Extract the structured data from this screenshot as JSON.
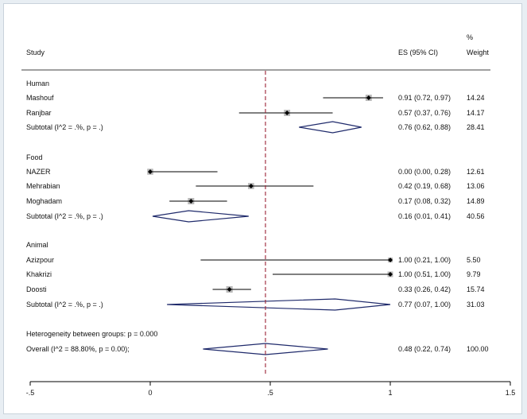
{
  "chart_data": {
    "type": "forest",
    "xlim": [
      -0.5,
      1.5
    ],
    "xticks": [
      "-.5",
      "0",
      ".5",
      "1",
      "1.5"
    ],
    "xtick_values": [
      -0.5,
      0,
      0.5,
      1,
      1.5
    ],
    "overall_line": 0.48,
    "columns": {
      "study": "Study",
      "es": "ES (95% CI)",
      "weight_pct": "%",
      "weight": "Weight"
    },
    "groups": [
      {
        "name": "Human",
        "studies": [
          {
            "name": "Mashouf",
            "es": 0.91,
            "lo": 0.72,
            "hi": 0.97,
            "es_text": "0.91 (0.72, 0.97)",
            "weight": "14.24"
          },
          {
            "name": "Ranjbar",
            "es": 0.57,
            "lo": 0.37,
            "hi": 0.76,
            "es_text": "0.57 (0.37, 0.76)",
            "weight": "14.17"
          }
        ],
        "subtotal": {
          "label": "Subtotal  (I^2 = .%, p = .)",
          "es": 0.76,
          "lo": 0.62,
          "hi": 0.88,
          "es_text": "0.76 (0.62, 0.88)",
          "weight": "28.41"
        }
      },
      {
        "name": "Food",
        "studies": [
          {
            "name": "NAZER",
            "es": 0.0,
            "lo": 0.0,
            "hi": 0.28,
            "es_text": "0.00 (0.00, 0.28)",
            "weight": "12.61"
          },
          {
            "name": "Mehrabian",
            "es": 0.42,
            "lo": 0.19,
            "hi": 0.68,
            "es_text": "0.42 (0.19, 0.68)",
            "weight": "13.06"
          },
          {
            "name": "Moghadam",
            "es": 0.17,
            "lo": 0.08,
            "hi": 0.32,
            "es_text": "0.17 (0.08, 0.32)",
            "weight": "14.89"
          }
        ],
        "subtotal": {
          "label": "Subtotal  (I^2 = .%, p = .)",
          "es": 0.16,
          "lo": 0.01,
          "hi": 0.41,
          "es_text": "0.16 (0.01, 0.41)",
          "weight": "40.56"
        }
      },
      {
        "name": "Animal",
        "studies": [
          {
            "name": "Azizpour",
            "es": 1.0,
            "lo": 0.21,
            "hi": 1.0,
            "es_text": "1.00 (0.21, 1.00)",
            "weight": "5.50"
          },
          {
            "name": "Khakrizi",
            "es": 1.0,
            "lo": 0.51,
            "hi": 1.0,
            "es_text": "1.00 (0.51, 1.00)",
            "weight": "9.79"
          },
          {
            "name": "Doosti",
            "es": 0.33,
            "lo": 0.26,
            "hi": 0.42,
            "es_text": "0.33 (0.26, 0.42)",
            "weight": "15.74"
          }
        ],
        "subtotal": {
          "label": "Subtotal  (I^2 = .%, p = .)",
          "es": 0.77,
          "lo": 0.07,
          "hi": 1.0,
          "es_text": "0.77 (0.07, 1.00)",
          "weight": "31.03"
        }
      }
    ],
    "heterogeneity": "Heterogeneity between groups: p = 0.000",
    "overall": {
      "label": "Overall  (I^2 = 88.80%, p = 0.00);",
      "es": 0.48,
      "lo": 0.22,
      "hi": 0.74,
      "es_text": "0.48 (0.22, 0.74)",
      "weight": "100.00"
    }
  },
  "colors": {
    "diamond": "#1f2a6b",
    "line": "#000000",
    "box": "#b8b8b8",
    "dashed": "#9b2335"
  }
}
